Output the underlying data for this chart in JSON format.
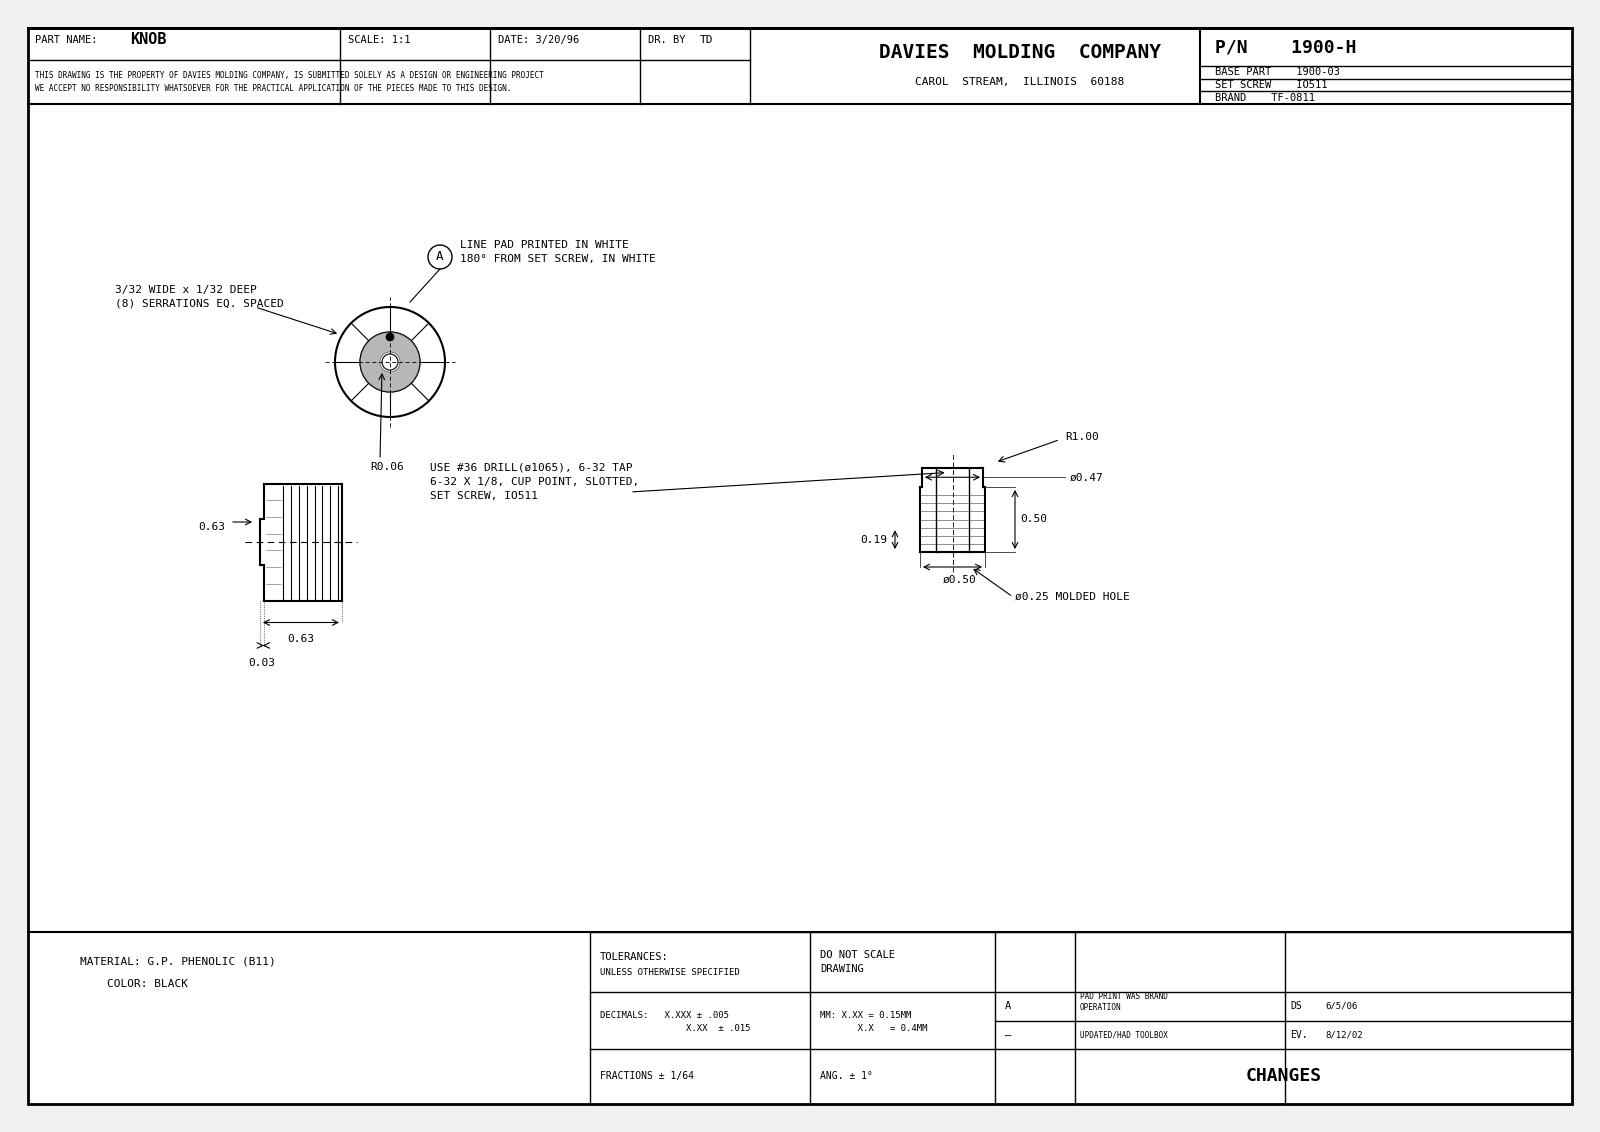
{
  "bg_color": "#f0f0f0",
  "drawing_bg": "#ffffff",
  "border_color": "#000000",
  "line_color": "#000000",
  "title_company": "DAVIES  MOLDING  COMPANY",
  "subtitle_company": "CAROL  STREAM,  ILLINOIS  60188",
  "pn": "P/N    1900-H",
  "base_part": "BASE PART    1900-03",
  "set_screw": "SET SCREW    IO511",
  "brand": "BRAND    TF-0811",
  "part_name_label": "PART NAME:",
  "part_name_value": "KNOB",
  "scale_label": "SCALE: 1:1",
  "date_label": "DATE: 3/20/96",
  "dr_by_label": "DR. BY",
  "dr_by_value": "TD",
  "disclaimer": "THIS DRAWING IS THE PROPERTY OF DAVIES MOLDING COMPANY, IS SUBMITTED SOLELY AS A DESIGN OR ENGINEERING PROJECT\nWE ACCEPT NO RESPONSIBILITY WHATSOEVER FOR THE PRACTICAL APPLICATION OF THE PIECES MADE TO THIS DESIGN.",
  "material_line1": "MATERIAL: G.P. PHENOLIC (B11)",
  "material_line2": "    COLOR: BLACK",
  "tolerances_label": "TOLERANCES:",
  "tolerances_sub": "UNLESS OTHERWISE SPECIFIED",
  "do_not_scale": "DO NOT SCALE\nDRAWING",
  "decimals_label": "DECIMALS:   X.XXX ± .005",
  "decimals_label2": "                X.XX  ± .015",
  "mm_label": "MM: X.XX = 0.15MM",
  "mm_label2": "       X.X   = 0.4MM",
  "fractions_label": "FRACTIONS ± 1/64",
  "ang_label": "ANG. ± 1°",
  "changes_label": "CHANGES",
  "rev_a_label": "A",
  "rev_a_text": "PAD PRINT WAS BRAND\nOPERATION",
  "rev_a_by": "DS",
  "rev_a_date": "6/5/06",
  "rev_dash_label": "–",
  "rev_dash_text": "UPDATED/HAD TOOLBOX",
  "rev_dash_by": "EV.",
  "rev_dash_date": "8/12/02",
  "annot_serrations": "3/32 WIDE x 1/32 DEEP\n(8) SERRATIONS EQ. SPACED",
  "annot_linepad": "LINE PAD PRINTED IN WHITE\n180° FROM SET SCREW, IN WHITE",
  "annot_r006": "R0.06",
  "annot_drill": "USE #36 DRILL(ø1065), 6-32 TAP\n6-32 X 1/8, CUP POINT, SLOTTED,\nSET SCREW, IO511",
  "annot_r100": "R1.00",
  "annot_phi047": "ø0.47",
  "annot_050": "0.50",
  "annot_phi050": "ø0.50",
  "annot_025": "ø0.25 MOLDED HOLE",
  "annot_019": "0.19",
  "annot_063": "0.63",
  "annot_003": "0.03"
}
